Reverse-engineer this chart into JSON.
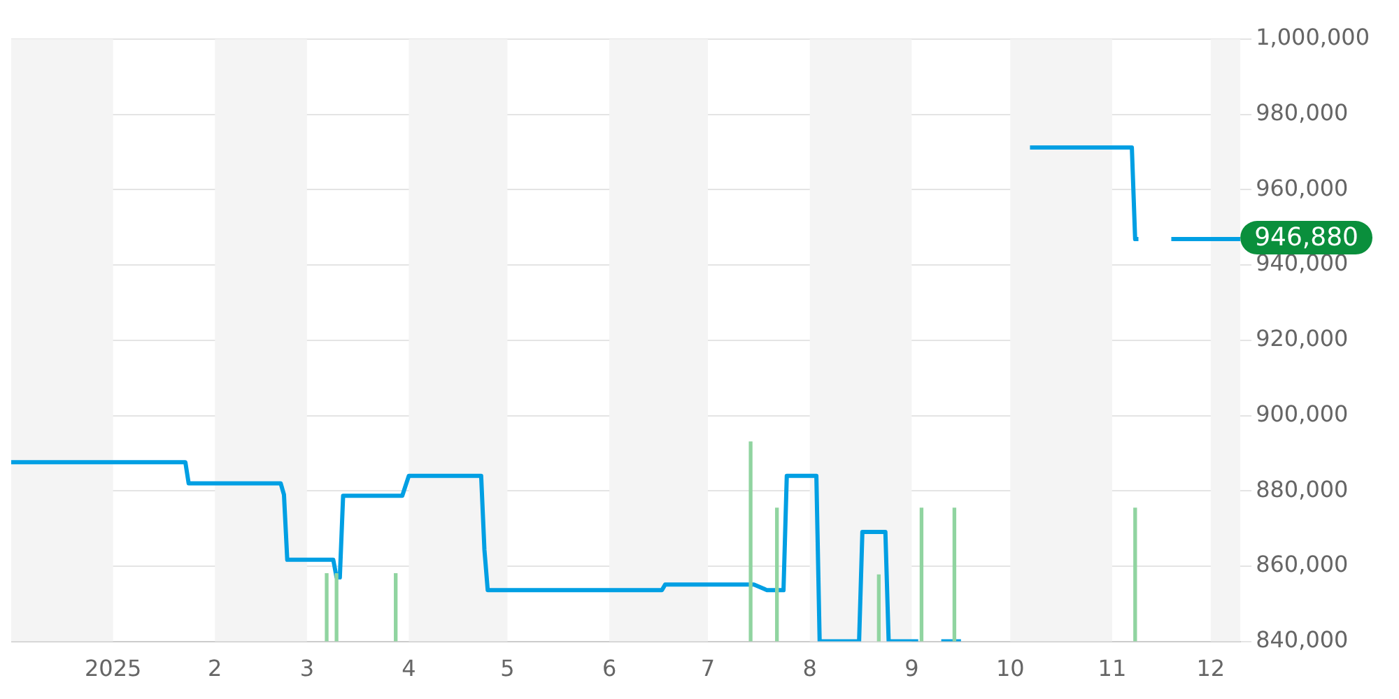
{
  "chart_data": {
    "type": "line",
    "xlim": [
      "2024-12-01",
      "2025-12-10"
    ],
    "ylim": [
      840000,
      1000000
    ],
    "xticks": [
      {
        "value": "2025-01-01",
        "label": "2025"
      },
      {
        "value": "2025-02-01",
        "label": "2"
      },
      {
        "value": "2025-03-01",
        "label": "3"
      },
      {
        "value": "2025-04-01",
        "label": "4"
      },
      {
        "value": "2025-05-01",
        "label": "5"
      },
      {
        "value": "2025-06-01",
        "label": "6"
      },
      {
        "value": "2025-07-01",
        "label": "7"
      },
      {
        "value": "2025-08-01",
        "label": "8"
      },
      {
        "value": "2025-09-01",
        "label": "9"
      },
      {
        "value": "2025-10-01",
        "label": "10"
      },
      {
        "value": "2025-11-01",
        "label": "11"
      },
      {
        "value": "2025-12-01",
        "label": "12"
      }
    ],
    "yticks": [
      {
        "value": 840000,
        "label": "840,000"
      },
      {
        "value": 860000,
        "label": "860,000"
      },
      {
        "value": 880000,
        "label": "880,000"
      },
      {
        "value": 900000,
        "label": "900,000"
      },
      {
        "value": 920000,
        "label": "920,000"
      },
      {
        "value": 940000,
        "label": "940,000"
      },
      {
        "value": 960000,
        "label": "960,000"
      },
      {
        "value": 980000,
        "label": "980,000"
      },
      {
        "value": 1000000,
        "label": "1,000,000"
      }
    ],
    "grid": "y",
    "legend": false,
    "marker": "none",
    "line_style": "solid",
    "series": [
      {
        "color": "#009fe3",
        "x": [
          "2024-12-01",
          "2025-01-23",
          "2025-01-24",
          "2025-02-21",
          "2025-02-22",
          "2025-02-23",
          "2025-03-09",
          "2025-03-10",
          "2025-03-11",
          "2025-03-12",
          "2025-03-30",
          "2025-04-01",
          "2025-04-23",
          "2025-04-24",
          "2025-04-25",
          "2025-06-17",
          "2025-06-18",
          "2025-07-15",
          "2025-07-18",
          "2025-07-19",
          "2025-07-24",
          "2025-07-25",
          "2025-08-03",
          "2025-08-04",
          "2025-08-16",
          "2025-08-17",
          "2025-08-24",
          "2025-08-25",
          "2025-09-03",
          "2025-09-06",
          "2025-09-10",
          "2025-09-16",
          "2025-09-30",
          "2025-10-07",
          "2025-11-07",
          "2025-11-08",
          "2025-11-09",
          "2025-11-14",
          "2025-11-19",
          "2025-12-10"
        ],
        "values": [
          887600,
          887600,
          882000,
          882000,
          879000,
          861700,
          861700,
          857000,
          857000,
          878700,
          878700,
          884000,
          884000,
          864300,
          853600,
          853600,
          855100,
          855100,
          854000,
          853600,
          853600,
          884000,
          884000,
          840000,
          840000,
          869100,
          869100,
          840000,
          840000,
          null,
          840000,
          840000,
          null,
          971200,
          971200,
          946880,
          946880,
          null,
          946880,
          946880
        ]
      },
      {
        "type": "bar",
        "color": "#90d4a0",
        "x": [
          "2025-03-07",
          "2025-03-10",
          "2025-03-28",
          "2025-07-14",
          "2025-07-22",
          "2025-08-22",
          "2025-09-04",
          "2025-09-14",
          "2025-11-08"
        ],
        "values": [
          858000,
          858000,
          858000,
          893000,
          875400,
          857700,
          875400,
          875400,
          875400
        ]
      }
    ],
    "bands": [
      {
        "axis": "x",
        "from": "2024-12-01",
        "to": "2025-01-01",
        "color": "#f4f4f4"
      },
      {
        "axis": "x",
        "from": "2025-02-01",
        "to": "2025-03-01",
        "color": "#f4f4f4"
      },
      {
        "axis": "x",
        "from": "2025-04-01",
        "to": "2025-05-01",
        "color": "#f4f4f4"
      },
      {
        "axis": "x",
        "from": "2025-06-01",
        "to": "2025-07-01",
        "color": "#f4f4f4"
      },
      {
        "axis": "x",
        "from": "2025-08-01",
        "to": "2025-09-01",
        "color": "#f4f4f4"
      },
      {
        "axis": "x",
        "from": "2025-10-01",
        "to": "2025-11-01",
        "color": "#f4f4f4"
      },
      {
        "axis": "x",
        "from": "2025-12-01",
        "to": "2025-12-10",
        "color": "#f4f4f4"
      }
    ],
    "annotations": [
      {
        "text": "946,880",
        "x": "2025-12-10",
        "y": 946880
      }
    ]
  }
}
